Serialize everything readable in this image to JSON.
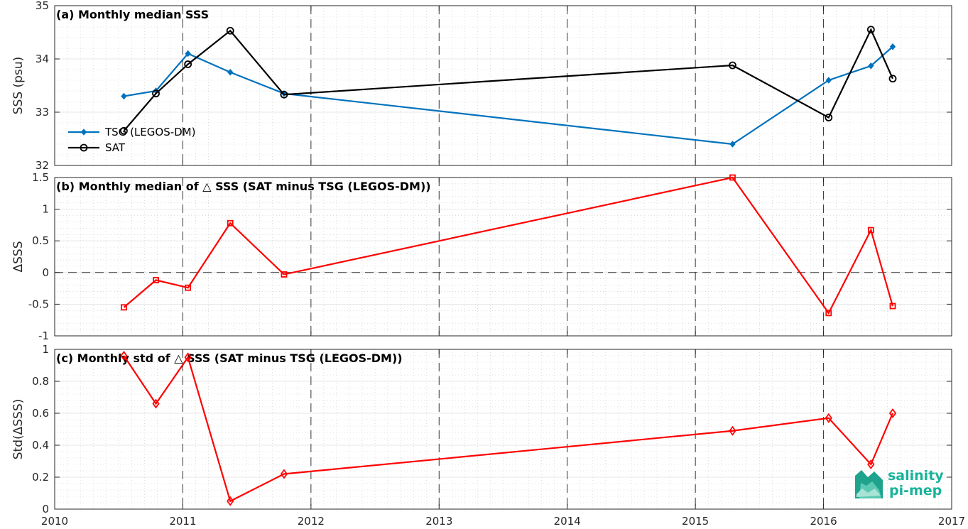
{
  "chart_data": [
    {
      "type": "line",
      "title": "(a) Monthly median SSS",
      "xlabel": "",
      "ylabel": "SSS (psu)",
      "xlim": [
        2010,
        2017
      ],
      "ylim": [
        32,
        35
      ],
      "xticks": [
        2010,
        2011,
        2012,
        2013,
        2014,
        2015,
        2016,
        2017
      ],
      "yticks": [
        32,
        33,
        34,
        35
      ],
      "grid": true,
      "legend": "left",
      "series": [
        {
          "name": "TSG (LEGOS-DM)",
          "color": "#0072bd",
          "marker": "diamond-filled",
          "x": [
            2010.54,
            2010.79,
            2011.04,
            2011.37,
            2011.79,
            2015.29,
            2016.04,
            2016.37,
            2016.54
          ],
          "y": [
            33.3,
            33.4,
            34.1,
            33.75,
            33.35,
            32.4,
            33.6,
            33.87,
            34.23
          ]
        },
        {
          "name": "SAT",
          "color": "#000000",
          "marker": "circle-open",
          "x": [
            2010.54,
            2010.79,
            2011.04,
            2011.37,
            2011.79,
            2015.29,
            2016.04,
            2016.37,
            2016.54
          ],
          "y": [
            32.65,
            33.35,
            33.9,
            34.53,
            33.33,
            33.88,
            32.9,
            34.55,
            33.63
          ]
        }
      ]
    },
    {
      "type": "line",
      "title": "(b) Monthly median of △ SSS (SAT minus TSG (LEGOS-DM))",
      "xlabel": "",
      "ylabel": "ΔSSS",
      "xlim": [
        2010,
        2017
      ],
      "ylim": [
        -1,
        1.5
      ],
      "xticks": [
        2010,
        2011,
        2012,
        2013,
        2014,
        2015,
        2016,
        2017
      ],
      "yticks": [
        -1,
        -0.5,
        0,
        0.5,
        1,
        1.5
      ],
      "grid": true,
      "zero_line": true,
      "series": [
        {
          "color": "#ff0000",
          "marker": "square-open",
          "x": [
            2010.54,
            2010.79,
            2011.04,
            2011.37,
            2011.79,
            2015.29,
            2016.04,
            2016.37,
            2016.54
          ],
          "y": [
            -0.55,
            -0.12,
            -0.24,
            0.78,
            -0.03,
            1.5,
            -0.64,
            0.67,
            -0.53
          ]
        }
      ]
    },
    {
      "type": "line",
      "title": "(c) Monthly std of △ SSS (SAT minus TSG (LEGOS-DM))",
      "xlabel": "",
      "ylabel": "Std(ΔSSS)",
      "xlim": [
        2010,
        2017
      ],
      "ylim": [
        0,
        1
      ],
      "xticks": [
        2010,
        2011,
        2012,
        2013,
        2014,
        2015,
        2016,
        2017
      ],
      "yticks": [
        0,
        0.2,
        0.4,
        0.6,
        0.8,
        1
      ],
      "grid": true,
      "series": [
        {
          "color": "#ff0000",
          "marker": "diamond-open",
          "x": [
            2010.54,
            2010.79,
            2011.04,
            2011.37,
            2011.79,
            2015.29,
            2016.04,
            2016.37,
            2016.54
          ],
          "y": [
            0.96,
            0.66,
            0.95,
            0.05,
            0.22,
            0.49,
            0.57,
            0.28,
            0.6
          ]
        }
      ]
    }
  ],
  "year_markers": [
    2011,
    2012,
    2013,
    2014,
    2015,
    2016
  ],
  "logo": {
    "line1": "salinity",
    "line2": "pi-mep",
    "color": "#19b39a"
  }
}
